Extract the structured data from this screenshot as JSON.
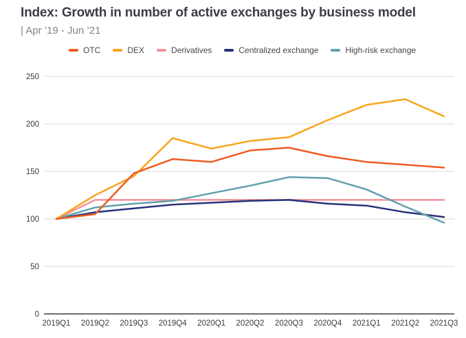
{
  "header": {
    "title": "Index: Growth in number of active exchanges by business model",
    "subtitle": "| Apr ’19 - Jun ’21"
  },
  "chart_data": {
    "type": "line",
    "title": "Index: Growth in number of active exchanges by business model",
    "subtitle": "| Apr ’19 - Jun ’21",
    "categories": [
      "2019Q1",
      "2019Q2",
      "2019Q3",
      "2019Q4",
      "2020Q1",
      "2020Q2",
      "2020Q3",
      "2020Q4",
      "2021Q1",
      "2021Q2",
      "2021Q3"
    ],
    "series": [
      {
        "name": "OTC",
        "color": "#EE5B22",
        "values": [
          100,
          105,
          148,
          163,
          160,
          172,
          175,
          166,
          160,
          157,
          154
        ]
      },
      {
        "name": "DEX",
        "color": "#F9A51B",
        "values": [
          100,
          125,
          145,
          185,
          174,
          182,
          186,
          204,
          220,
          226,
          208
        ]
      },
      {
        "name": "Derivatives",
        "color": "#F2919B",
        "values": [
          100,
          120,
          120,
          120,
          120,
          120,
          120,
          120,
          120,
          120,
          120
        ]
      },
      {
        "name": "Centralized exchange",
        "color": "#28327A",
        "values": [
          100,
          107,
          111,
          115,
          117,
          119,
          120,
          116,
          114,
          107,
          102
        ]
      },
      {
        "name": "High-risk exchange",
        "color": "#61A0AB",
        "values": [
          100,
          112,
          116,
          119,
          127,
          135,
          144,
          143,
          131,
          113,
          96
        ]
      }
    ],
    "xlabel": "",
    "ylabel": "",
    "ylim": [
      0,
      250
    ],
    "yticks": [
      0,
      50,
      100,
      150,
      200,
      250
    ],
    "grid": "horizontal",
    "legend_position": "top",
    "colors": {
      "gridline": "#D9D9D9",
      "zero_axis": "#3F3F3F",
      "tick_label": "#3A3A40",
      "title_text": "#3D3D46",
      "subtitle_text": "#84848C"
    }
  }
}
